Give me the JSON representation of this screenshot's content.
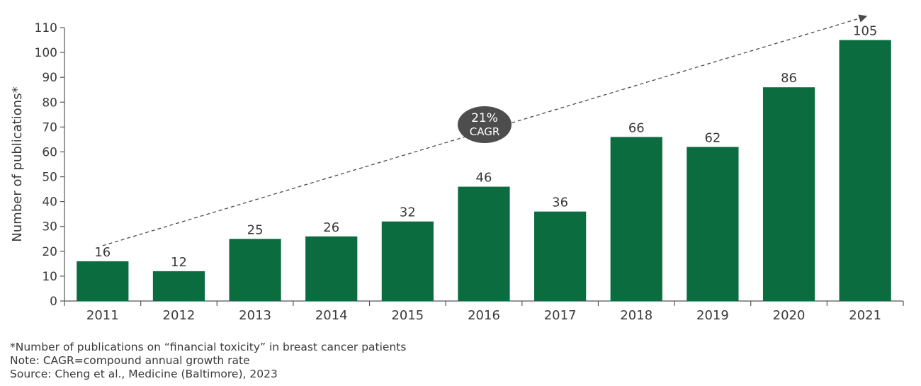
{
  "chart_data": {
    "type": "bar",
    "categories": [
      "2011",
      "2012",
      "2013",
      "2014",
      "2015",
      "2016",
      "2017",
      "2018",
      "2019",
      "2020",
      "2021"
    ],
    "values": [
      16,
      12,
      25,
      26,
      32,
      46,
      36,
      66,
      62,
      86,
      105
    ],
    "ylabel": "Number of publications*",
    "xlabel": "",
    "ylim": [
      0,
      110
    ],
    "yticks": [
      0,
      10,
      20,
      30,
      40,
      50,
      60,
      70,
      80,
      90,
      100,
      110
    ],
    "grid": false,
    "bar_color": "#0a6c3f",
    "annotation": {
      "line1": "21%",
      "line2": "CAGR",
      "color": "#4d4d4d"
    },
    "trend_start": 16,
    "trend_end": 110
  },
  "footnotes": {
    "asterisk": "*Number of publications on “financial toxicity” in breast cancer patients",
    "note": "Note: CAGR=compound annual growth rate",
    "source": "Source: Cheng et al., Medicine (Baltimore), 2023"
  }
}
